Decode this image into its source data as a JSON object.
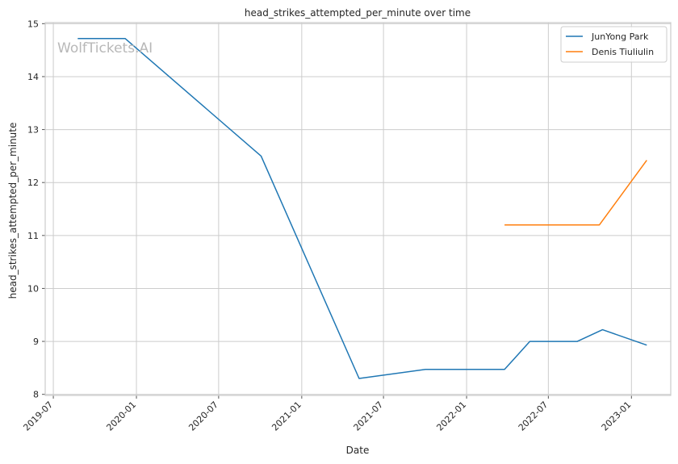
{
  "chart_data": {
    "type": "line",
    "title": "head_strikes_attempted_per_minute over time",
    "xlabel": "Date",
    "ylabel": "head_strikes_attempted_per_minute",
    "watermark": "WolfTickets.AI",
    "x_axis": {
      "kind": "date",
      "range": [
        "2019-06-13",
        "2023-03-29"
      ],
      "ticks": [
        "2019-07",
        "2020-01",
        "2020-07",
        "2021-01",
        "2021-07",
        "2022-01",
        "2022-07",
        "2023-01"
      ]
    },
    "ylim": [
      7.98,
      15.02
    ],
    "y_ticks": [
      8,
      9,
      10,
      11,
      12,
      13,
      14,
      15
    ],
    "grid": true,
    "legend_position": "top-right",
    "series": [
      {
        "name": "JunYong Park",
        "color": "#1f77b4",
        "points": [
          {
            "x": "2019-08-24",
            "y": 14.72
          },
          {
            "x": "2019-12-07",
            "y": 14.72
          },
          {
            "x": "2020-10-03",
            "y": 12.5
          },
          {
            "x": "2021-05-08",
            "y": 8.3
          },
          {
            "x": "2021-10-02",
            "y": 8.47
          },
          {
            "x": "2022-03-26",
            "y": 8.47
          },
          {
            "x": "2022-05-21",
            "y": 9.0
          },
          {
            "x": "2022-09-03",
            "y": 9.0
          },
          {
            "x": "2022-10-29",
            "y": 9.22
          },
          {
            "x": "2023-02-04",
            "y": 8.93
          }
        ]
      },
      {
        "name": "Denis Tiuliulin",
        "color": "#ff7f0e",
        "points": [
          {
            "x": "2022-03-26",
            "y": 11.2
          },
          {
            "x": "2022-10-22",
            "y": 11.2
          },
          {
            "x": "2023-02-04",
            "y": 12.42
          }
        ]
      }
    ]
  }
}
